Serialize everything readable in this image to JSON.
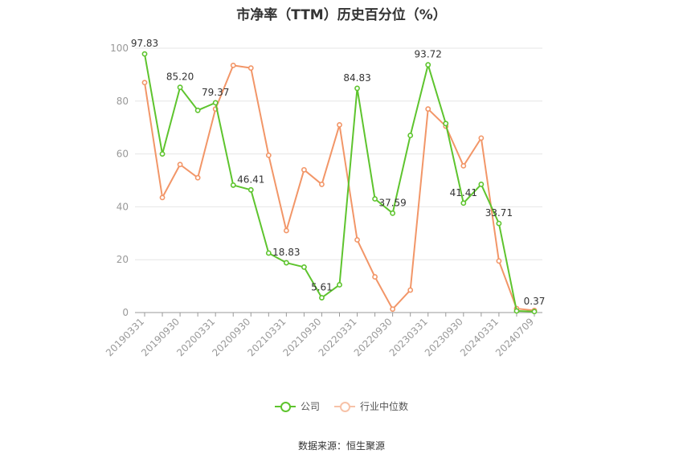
{
  "chart_data": {
    "type": "line",
    "title": "市净率（TTM）历史百分位（%）",
    "xlabel": "",
    "ylabel": "",
    "ylim": [
      0,
      100
    ],
    "yticks": [
      0,
      20,
      40,
      60,
      80,
      100
    ],
    "grid": true,
    "legend_position": "bottom",
    "x": [
      "20190331",
      "20190630",
      "20190930",
      "20191231",
      "20200331",
      "20200630",
      "20200930",
      "20201231",
      "20210331",
      "20210630",
      "20210930",
      "20211231",
      "20220331",
      "20220630",
      "20220930",
      "20221231",
      "20230331",
      "20230630",
      "20230930",
      "20231231",
      "20240331",
      "20240630",
      "20240709"
    ],
    "xtick_labels": [
      "20190331",
      "20190930",
      "20200331",
      "20200930",
      "20210331",
      "20210930",
      "20220331",
      "20220930",
      "20230331",
      "20230930",
      "20240331",
      "20240709"
    ],
    "series": [
      {
        "name": "公司",
        "color": "#5ec42e",
        "values": [
          97.83,
          60,
          85.2,
          76.5,
          79.37,
          48.2,
          46.41,
          22.5,
          18.83,
          17.2,
          5.61,
          10.5,
          84.83,
          43,
          37.59,
          67,
          93.72,
          71.5,
          41.41,
          48.5,
          33.71,
          0.6,
          0.37
        ],
        "labels": {
          "0": "97.83",
          "2": "85.20",
          "4": "79.37",
          "6": "46.41",
          "8": "18.83",
          "10": "5.61",
          "12": "84.83",
          "14": "37.59",
          "16": "93.72",
          "18": "41.41",
          "20": "33.71",
          "22": "0.37"
        }
      },
      {
        "name": "行业中位数",
        "color": "#f29668",
        "values": [
          87,
          43.5,
          56,
          51,
          77,
          93.5,
          92.5,
          59.5,
          31,
          54,
          48.5,
          71,
          27.5,
          13.5,
          1.3,
          8.5,
          77,
          70.5,
          55.5,
          66,
          19.5,
          1.5,
          0.8
        ]
      }
    ]
  },
  "source": "数据来源：恒生聚源"
}
